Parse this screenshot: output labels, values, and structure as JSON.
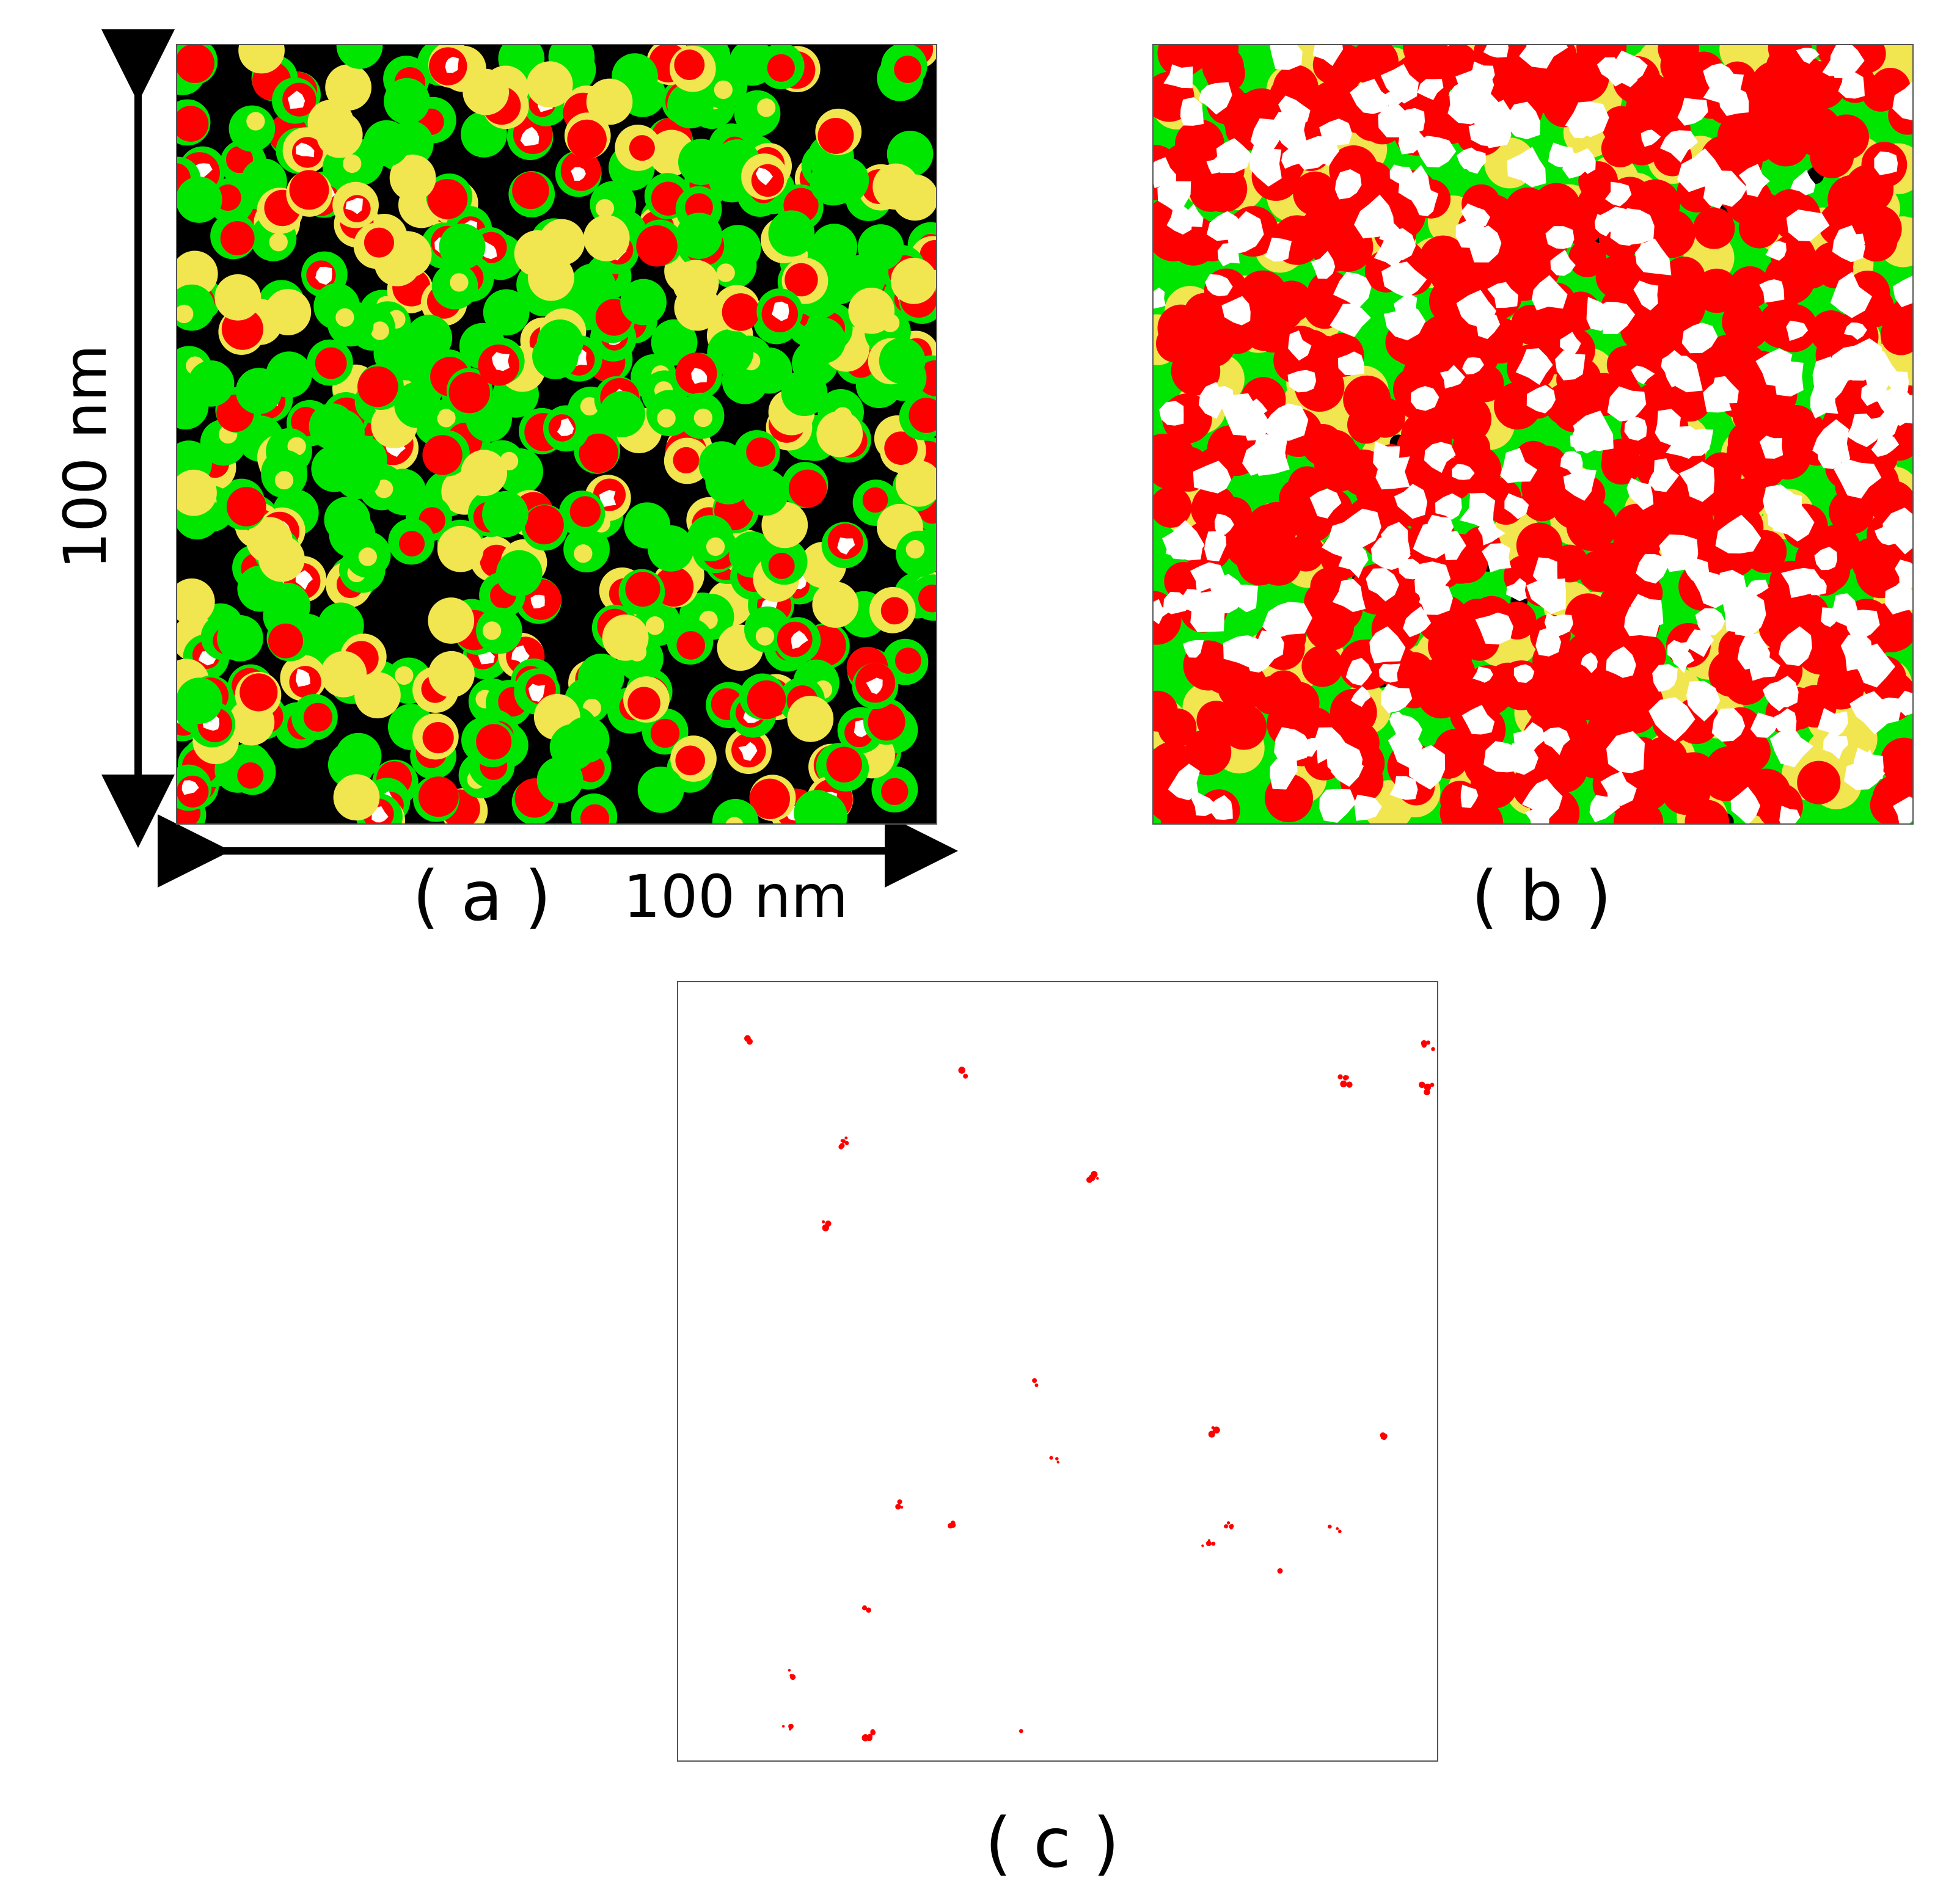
{
  "panels": {
    "a": {
      "caption": "( a )"
    },
    "b": {
      "caption": "( b )"
    },
    "c": {
      "caption": "( c )"
    }
  },
  "scale": {
    "x_label": "100 nm",
    "y_label": "100 nm"
  },
  "colors": {
    "red": "#ff0000",
    "green": "#00e600",
    "yellow": "#f2e650",
    "black": "#000000",
    "white": "#ffffff"
  }
}
